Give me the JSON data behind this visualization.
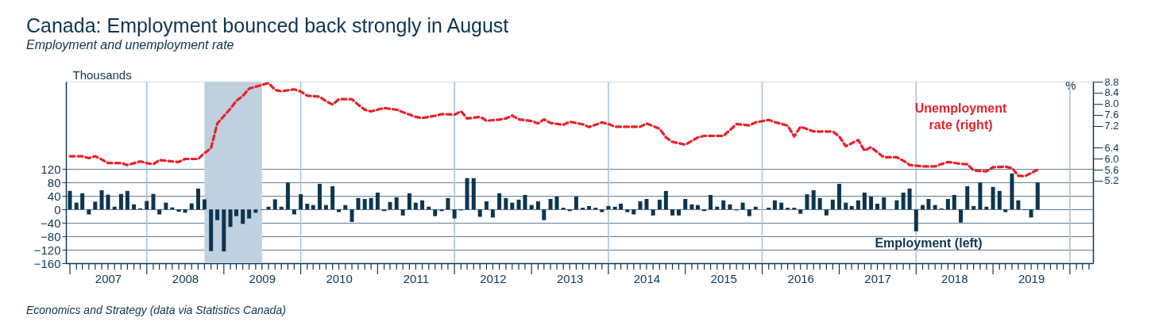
{
  "chart_data": {
    "type": "bar",
    "title": "Canada: Employment bounced back strongly in August",
    "subtitle": "Employment and unemployment rate",
    "ylabel": "Thousands",
    "y2label": "%",
    "annotations": [
      "Economics and Strategy (data via Statistics Canada)"
    ],
    "x": [
      "2007-01",
      "2007-02",
      "2007-03",
      "2007-04",
      "2007-05",
      "2007-06",
      "2007-07",
      "2007-08",
      "2007-09",
      "2007-10",
      "2007-11",
      "2007-12",
      "2008-01",
      "2008-02",
      "2008-03",
      "2008-04",
      "2008-05",
      "2008-06",
      "2008-07",
      "2008-08",
      "2008-09",
      "2008-10",
      "2008-11",
      "2008-12",
      "2009-01",
      "2009-02",
      "2009-03",
      "2009-04",
      "2009-05",
      "2009-06",
      "2009-07",
      "2009-08",
      "2009-09",
      "2009-10",
      "2009-11",
      "2009-12",
      "2010-01",
      "2010-02",
      "2010-03",
      "2010-04",
      "2010-05",
      "2010-06",
      "2010-07",
      "2010-08",
      "2010-09",
      "2010-10",
      "2010-11",
      "2010-12",
      "2011-01",
      "2011-02",
      "2011-03",
      "2011-04",
      "2011-05",
      "2011-06",
      "2011-07",
      "2011-08",
      "2011-09",
      "2011-10",
      "2011-11",
      "2011-12",
      "2012-01",
      "2012-02",
      "2012-03",
      "2012-04",
      "2012-05",
      "2012-06",
      "2012-07",
      "2012-08",
      "2012-09",
      "2012-10",
      "2012-11",
      "2012-12",
      "2013-01",
      "2013-02",
      "2013-03",
      "2013-04",
      "2013-05",
      "2013-06",
      "2013-07",
      "2013-08",
      "2013-09",
      "2013-10",
      "2013-11",
      "2013-12",
      "2014-01",
      "2014-02",
      "2014-03",
      "2014-04",
      "2014-05",
      "2014-06",
      "2014-07",
      "2014-08",
      "2014-09",
      "2014-10",
      "2014-11",
      "2014-12",
      "2015-01",
      "2015-02",
      "2015-03",
      "2015-04",
      "2015-05",
      "2015-06",
      "2015-07",
      "2015-08",
      "2015-09",
      "2015-10",
      "2015-11",
      "2015-12",
      "2016-01",
      "2016-02",
      "2016-03",
      "2016-04",
      "2016-05",
      "2016-06",
      "2016-07",
      "2016-08",
      "2016-09",
      "2016-10",
      "2016-11",
      "2016-12",
      "2017-01",
      "2017-02",
      "2017-03",
      "2017-04",
      "2017-05",
      "2017-06",
      "2017-07",
      "2017-08",
      "2017-09",
      "2017-10",
      "2017-11",
      "2017-12",
      "2018-01",
      "2018-02",
      "2018-03",
      "2018-04",
      "2018-05",
      "2018-06",
      "2018-07",
      "2018-08",
      "2018-09",
      "2018-10",
      "2018-11",
      "2018-12",
      "2019-01",
      "2019-02",
      "2019-03",
      "2019-04",
      "2019-05",
      "2019-06",
      "2019-07",
      "2019-08"
    ],
    "series": [
      {
        "name": "Employment (left)",
        "color": "#0d3550",
        "values": [
          55,
          20,
          48,
          -15,
          23,
          57,
          44,
          8,
          46,
          55,
          15,
          3,
          25,
          46,
          -15,
          20,
          6,
          -7,
          -10,
          18,
          62,
          30,
          -124,
          -32,
          -125,
          -52,
          -20,
          -43,
          -27,
          -10,
          -1,
          8,
          30,
          8,
          80,
          -15,
          45,
          17,
          13,
          76,
          13,
          69,
          -8,
          13,
          -37,
          34,
          31,
          34,
          50,
          -5,
          22,
          36,
          -18,
          48,
          20,
          27,
          8,
          -20,
          -5,
          34,
          -27,
          -3,
          93,
          93,
          -22,
          24,
          -24,
          48,
          34,
          20,
          29,
          43,
          13,
          24,
          -32,
          31,
          38,
          5,
          -5,
          38,
          5,
          10,
          5,
          -8,
          10,
          8,
          17,
          -8,
          -15,
          24,
          31,
          -18,
          29,
          55,
          -18,
          -18,
          31,
          15,
          13,
          -5,
          43,
          8,
          27,
          15,
          -3,
          20,
          -20,
          8,
          null,
          5,
          27,
          20,
          5,
          5,
          -13,
          45,
          57,
          34,
          -18,
          29,
          76,
          20,
          10,
          27,
          50,
          38,
          17,
          36,
          0,
          27,
          50,
          62,
          -65,
          13,
          31,
          13,
          3,
          31,
          43,
          -39,
          69,
          10,
          80,
          8,
          67,
          55,
          -8,
          107,
          27,
          -2,
          -24,
          80
        ]
      },
      {
        "name": "Unemployment rate (right)",
        "type": "line",
        "axis": "y2",
        "color": "#e8202a",
        "line_style": "dashed",
        "x": [
          "2007-01",
          "2007-03",
          "2007-04",
          "2007-05",
          "2007-06",
          "2007-07",
          "2007-09",
          "2007-10",
          "2007-12",
          "2008-01",
          "2008-02",
          "2008-03",
          "2008-05",
          "2008-06",
          "2008-07",
          "2008-09",
          "2008-10",
          "2008-11",
          "2008-12",
          "2009-02",
          "2009-03",
          "2009-04",
          "2009-05",
          "2009-07",
          "2009-08",
          "2009-09",
          "2009-10",
          "2009-12",
          "2010-01",
          "2010-02",
          "2010-04",
          "2010-05",
          "2010-06",
          "2010-07",
          "2010-09",
          "2010-10",
          "2010-11",
          "2010-12",
          "2011-02",
          "2011-04",
          "2011-05",
          "2011-07",
          "2011-08",
          "2011-10",
          "2011-11",
          "2012-01",
          "2012-02",
          "2012-03",
          "2012-05",
          "2012-06",
          "2012-08",
          "2012-09",
          "2012-10",
          "2012-11",
          "2013-01",
          "2013-02",
          "2013-03",
          "2013-04",
          "2013-06",
          "2013-07",
          "2013-09",
          "2013-10",
          "2013-12",
          "2014-01",
          "2014-02",
          "2014-04",
          "2014-06",
          "2014-07",
          "2014-09",
          "2014-10",
          "2014-11",
          "2015-01",
          "2015-03",
          "2015-04",
          "2015-05",
          "2015-07",
          "2015-08",
          "2015-09",
          "2015-11",
          "2015-12",
          "2016-02",
          "2016-03",
          "2016-05",
          "2016-06",
          "2016-07",
          "2016-09",
          "2016-12",
          "2017-01",
          "2017-02",
          "2017-04",
          "2017-05",
          "2017-06",
          "2017-07",
          "2017-08",
          "2017-10",
          "2017-11",
          "2017-12",
          "2018-02",
          "2018-04",
          "2018-05",
          "2018-06",
          "2018-08",
          "2018-09",
          "2018-10",
          "2018-12",
          "2019-01",
          "2019-03",
          "2019-04",
          "2019-05",
          "2019-06",
          "2019-07",
          "2019-08"
        ],
        "values": [
          6.09,
          6.09,
          6.02,
          6.09,
          5.97,
          5.84,
          5.84,
          5.77,
          5.9,
          5.84,
          5.8,
          5.95,
          5.9,
          5.88,
          5.99,
          5.99,
          6.2,
          6.38,
          7.28,
          7.82,
          8.1,
          8.28,
          8.55,
          8.68,
          8.75,
          8.5,
          8.45,
          8.52,
          8.44,
          8.29,
          8.25,
          8.09,
          7.97,
          8.16,
          8.16,
          7.96,
          7.78,
          7.72,
          7.84,
          7.78,
          7.69,
          7.52,
          7.48,
          7.56,
          7.62,
          7.6,
          7.72,
          7.46,
          7.52,
          7.38,
          7.42,
          7.46,
          7.57,
          7.43,
          7.37,
          7.28,
          7.43,
          7.3,
          7.23,
          7.34,
          7.25,
          7.15,
          7.32,
          7.26,
          7.16,
          7.16,
          7.16,
          7.28,
          7.09,
          6.77,
          6.61,
          6.51,
          6.77,
          6.83,
          6.83,
          6.83,
          7.04,
          7.26,
          7.21,
          7.32,
          7.41,
          7.33,
          7.2,
          6.81,
          7.16,
          6.99,
          6.99,
          6.81,
          6.45,
          6.68,
          6.29,
          6.42,
          6.23,
          6.05,
          6.05,
          5.93,
          5.77,
          5.72,
          5.72,
          5.8,
          5.88,
          5.81,
          5.8,
          5.57,
          5.54,
          5.69,
          5.71,
          5.66,
          5.38,
          5.36,
          5.48,
          5.6
        ]
      }
    ],
    "xlim": [
      "2007-01",
      "2020-04"
    ],
    "xticks": [
      {
        "value": "2007-07",
        "label": "2007"
      },
      {
        "value": "2008-07",
        "label": "2008"
      },
      {
        "value": "2009-07",
        "label": "2009"
      },
      {
        "value": "2010-07",
        "label": "2010"
      },
      {
        "value": "2011-07",
        "label": "2011"
      },
      {
        "value": "2012-07",
        "label": "2012"
      },
      {
        "value": "2013-07",
        "label": "2013"
      },
      {
        "value": "2014-07",
        "label": "2014"
      },
      {
        "value": "2015-07",
        "label": "2015"
      },
      {
        "value": "2016-07",
        "label": "2016"
      },
      {
        "value": "2017-07",
        "label": "2017"
      },
      {
        "value": "2018-07",
        "label": "2018"
      },
      {
        "value": "2019-07",
        "label": "2019"
      }
    ],
    "ylim": [
      -160,
      380
    ],
    "yticks": [
      -160,
      -120,
      -80,
      -40,
      0,
      40,
      80,
      120
    ],
    "y2lim": [
      2.2,
      8.8
    ],
    "y2ticks": [
      5.2,
      5.6,
      {
        "value": 6,
        "label": "6.0"
      },
      6.4,
      7.2,
      7.6,
      {
        "value": 8,
        "label": "8.0"
      },
      8.4,
      8.8
    ],
    "bands": [
      {
        "axis": "x",
        "from": "2008-10",
        "to": "2009-07",
        "color": "#bfd0df"
      }
    ],
    "ref_lines": [
      {
        "axis": "x",
        "value": "2008-01",
        "color": "#a9bfcf"
      },
      {
        "axis": "x",
        "value": "2010-01",
        "color": "#a9bfcf"
      },
      {
        "axis": "x",
        "value": "2012-01",
        "color": "#a9bfcf"
      },
      {
        "axis": "x",
        "value": "2014-01",
        "color": "#a9bfcf"
      },
      {
        "axis": "x",
        "value": "2016-01",
        "color": "#a9bfcf"
      },
      {
        "axis": "x",
        "value": "2018-01",
        "color": "#a9bfcf"
      },
      {
        "axis": "x",
        "value": "2020-01",
        "color": "#a9bfcf"
      }
    ],
    "grid": "y"
  }
}
